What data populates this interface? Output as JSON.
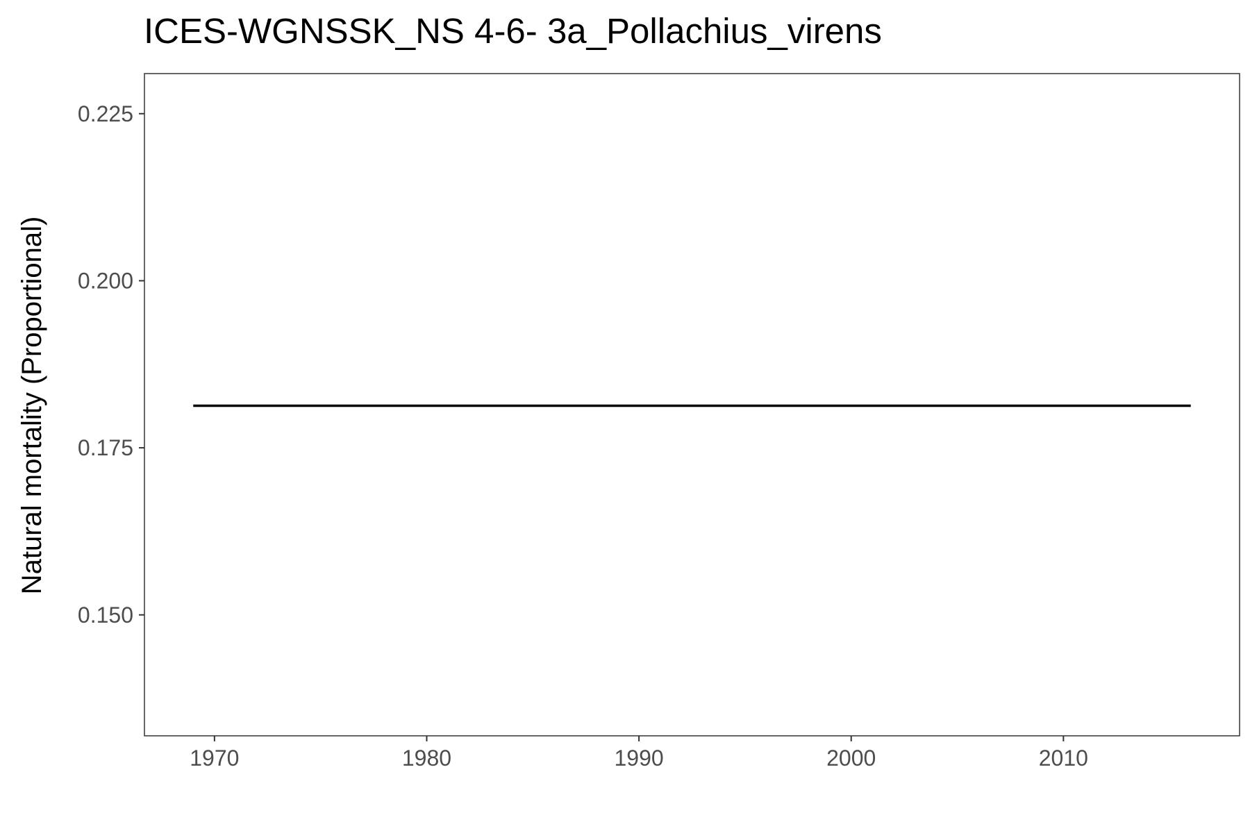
{
  "chart_data": {
    "type": "line",
    "title": "ICES-WGNSSK_NS 4-6- 3a_Pollachius_virens",
    "xlabel": "",
    "ylabel": "Natural mortality (Proportional)",
    "xlim": [
      1966.7,
      2018.3
    ],
    "ylim": [
      0.1319,
      0.231
    ],
    "x_ticks": [
      1970,
      1980,
      1990,
      2000,
      2010
    ],
    "x_tick_labels": [
      "1970",
      "1980",
      "1990",
      "2000",
      "2010"
    ],
    "y_ticks": [
      0.15,
      0.175,
      0.2,
      0.225
    ],
    "y_tick_labels": [
      "0.150",
      "0.175",
      "0.200",
      "0.225"
    ],
    "grid": false,
    "legend": "none",
    "series": [
      {
        "color": "#000000",
        "x": [
          1969,
          1970,
          1971,
          1972,
          1973,
          1974,
          1975,
          1976,
          1977,
          1978,
          1979,
          1980,
          1981,
          1982,
          1983,
          1984,
          1985,
          1986,
          1987,
          1988,
          1989,
          1990,
          1991,
          1992,
          1993,
          1994,
          1995,
          1996,
          1997,
          1998,
          1999,
          2000,
          2001,
          2002,
          2003,
          2004,
          2005,
          2006,
          2007,
          2008,
          2009,
          2010,
          2011,
          2012,
          2013,
          2014,
          2015,
          2016
        ],
        "y": [
          0.1813,
          0.1813,
          0.1813,
          0.1813,
          0.1813,
          0.1813,
          0.1813,
          0.1813,
          0.1813,
          0.1813,
          0.1813,
          0.1813,
          0.1813,
          0.1813,
          0.1813,
          0.1813,
          0.1813,
          0.1813,
          0.1813,
          0.1813,
          0.1813,
          0.1813,
          0.1813,
          0.1813,
          0.1813,
          0.1813,
          0.1813,
          0.1813,
          0.1813,
          0.1813,
          0.1813,
          0.1813,
          0.1813,
          0.1813,
          0.1813,
          0.1813,
          0.1813,
          0.1813,
          0.1813,
          0.1813,
          0.1813,
          0.1813,
          0.1813,
          0.1813,
          0.1813,
          0.1813,
          0.1813,
          0.1813
        ]
      }
    ]
  }
}
